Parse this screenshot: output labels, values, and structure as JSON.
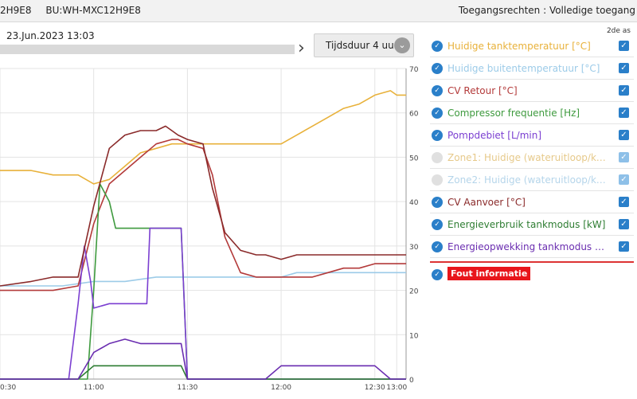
{
  "header": {
    "device_id_partial": "2H9E8",
    "bu_id": "BU:WH-MXC12H9E8",
    "access_rights": "Toegangsrechten : Volledige toegang"
  },
  "toolbar": {
    "datetime": "23.Jun.2023 13:03",
    "duration_label": "Tijdsduur 4 uur"
  },
  "legend": {
    "second_axis_header": "2de as",
    "items": [
      {
        "label": "Huidige tanktemperatuur [°C]",
        "color": "#e8b13a",
        "enabled": true,
        "second_axis": true
      },
      {
        "label": "Huidige buitentemperatuur [°C]",
        "color": "#9ccbe8",
        "enabled": true,
        "second_axis": true
      },
      {
        "label": "CV Retour [°C]",
        "color": "#b33a3a",
        "enabled": true,
        "second_axis": true
      },
      {
        "label": "Compressor frequentie [Hz]",
        "color": "#3e9a3e",
        "enabled": true,
        "second_axis": true
      },
      {
        "label": "Pompdebiet [L/min]",
        "color": "#7b3fd1",
        "enabled": true,
        "second_axis": true
      },
      {
        "label": "Zone1: Huidige (wateruitloop/kamer...",
        "color": "#e6c98a",
        "enabled": false,
        "second_axis": true
      },
      {
        "label": "Zone2: Huidige (wateruitloop/kamer...",
        "color": "#b5d5ea",
        "enabled": false,
        "second_axis": true
      },
      {
        "label": "CV Aanvoer [°C]",
        "color": "#8a2a2a",
        "enabled": true,
        "second_axis": true
      },
      {
        "label": "Energieverbruik tankmodus [kW]",
        "color": "#2e7d32",
        "enabled": true,
        "second_axis": true
      },
      {
        "label": "Energieopwekking tankmodus [kW]",
        "color": "#6a2db0",
        "enabled": true,
        "second_axis": true
      }
    ],
    "fault_label": "Fout informatie",
    "fault_color": "#e8151b"
  },
  "chart_data": {
    "type": "line",
    "x_ticks": [
      "0:30",
      "11:00",
      "11:30",
      "12:00",
      "12:30",
      "13:00"
    ],
    "x_range_minutes": [
      -30,
      100
    ],
    "y2_ticks": [
      0,
      10,
      20,
      30,
      40,
      50,
      60,
      70
    ],
    "y2lim": [
      0,
      70
    ],
    "grid": true,
    "series": [
      {
        "name": "Huidige tanktemperatuur [°C]",
        "color": "#e8b13a",
        "x": [
          -30,
          -20,
          -13,
          -5,
          0,
          5,
          10,
          15,
          20,
          25,
          30,
          35,
          40,
          45,
          50,
          55,
          60,
          65,
          70,
          75,
          80,
          85,
          90,
          95,
          97,
          100
        ],
        "y": [
          47,
          47,
          46,
          46,
          44,
          45,
          48,
          51,
          52,
          53,
          53,
          53,
          53,
          53,
          53,
          53,
          53,
          55,
          57,
          59,
          61,
          62,
          64,
          65,
          64,
          64
        ]
      },
      {
        "name": "Huidige buitentemperatuur [°C]",
        "color": "#9ccbe8",
        "x": [
          -30,
          -10,
          0,
          10,
          20,
          30,
          40,
          50,
          60,
          65,
          70,
          80,
          90,
          100
        ],
        "y": [
          21,
          21,
          22,
          22,
          23,
          23,
          23,
          23,
          23,
          24,
          24,
          24,
          24,
          24
        ]
      },
      {
        "name": "CV Retour [°C]",
        "color": "#b33a3a",
        "x": [
          -30,
          -20,
          -13,
          -5,
          0,
          5,
          10,
          15,
          20,
          25,
          27,
          30,
          35,
          38,
          42,
          47,
          52,
          55,
          60,
          65,
          70,
          75,
          80,
          85,
          90,
          95,
          100
        ],
        "y": [
          20,
          20,
          20,
          21,
          35,
          44,
          47,
          50,
          53,
          54,
          54,
          53,
          52,
          46,
          32,
          24,
          23,
          23,
          23,
          23,
          23,
          24,
          25,
          25,
          26,
          26,
          26
        ]
      },
      {
        "name": "Compressor frequentie [Hz]",
        "color": "#3e9a3e",
        "x": [
          -30,
          -5,
          -2,
          0,
          2,
          5,
          7,
          10,
          15,
          20,
          25,
          27,
          28,
          30,
          40,
          50,
          60,
          70,
          80,
          90,
          100
        ],
        "y": [
          0,
          0,
          0,
          20,
          44,
          40,
          34,
          34,
          34,
          34,
          34,
          34,
          34,
          0,
          0,
          0,
          0,
          0,
          0,
          0,
          0
        ]
      },
      {
        "name": "Pompdebiet [L/min]",
        "color": "#7b3fd1",
        "x": [
          -30,
          -8,
          -5,
          -3,
          -1,
          0,
          5,
          10,
          12,
          13,
          17,
          18,
          21,
          22,
          24,
          25,
          27,
          28,
          30,
          35,
          40,
          50,
          60,
          70,
          80,
          90,
          100
        ],
        "y": [
          0,
          0,
          17,
          30,
          22,
          16,
          17,
          17,
          17,
          17,
          17,
          34,
          34,
          34,
          34,
          34,
          34,
          34,
          0,
          0,
          0,
          0,
          0,
          0,
          0,
          0,
          0
        ]
      },
      {
        "name": "CV Aanvoer [°C]",
        "color": "#8a2a2a",
        "x": [
          -30,
          -20,
          -13,
          -5,
          0,
          5,
          10,
          15,
          20,
          23,
          25,
          27,
          30,
          35,
          38,
          42,
          47,
          52,
          55,
          60,
          65,
          70,
          75,
          80,
          85,
          90,
          95,
          100
        ],
        "y": [
          21,
          22,
          23,
          23,
          39,
          52,
          55,
          56,
          56,
          57,
          56,
          55,
          54,
          53,
          43,
          33,
          29,
          28,
          28,
          27,
          28,
          28,
          28,
          28,
          28,
          28,
          28,
          28
        ]
      },
      {
        "name": "Energieverbruik tankmodus [kW]",
        "color": "#2e7d32",
        "x": [
          -30,
          -5,
          0,
          5,
          10,
          15,
          20,
          25,
          28,
          30,
          40,
          50,
          60,
          70,
          80,
          90,
          100
        ],
        "y": [
          0,
          0,
          3,
          3,
          3,
          3,
          3,
          3,
          3,
          0,
          0,
          0,
          0,
          0,
          0,
          0,
          0
        ]
      },
      {
        "name": "Energieopwekking tankmodus [kW]",
        "color": "#6a2db0",
        "x": [
          -30,
          -5,
          0,
          5,
          10,
          15,
          20,
          25,
          27,
          28,
          30,
          40,
          50,
          55,
          60,
          70,
          80,
          90,
          95,
          97,
          100
        ],
        "y": [
          0,
          0,
          6,
          8,
          9,
          8,
          8,
          8,
          8,
          8,
          0,
          0,
          0,
          0,
          3,
          3,
          3,
          3,
          0,
          0,
          0
        ]
      }
    ]
  }
}
